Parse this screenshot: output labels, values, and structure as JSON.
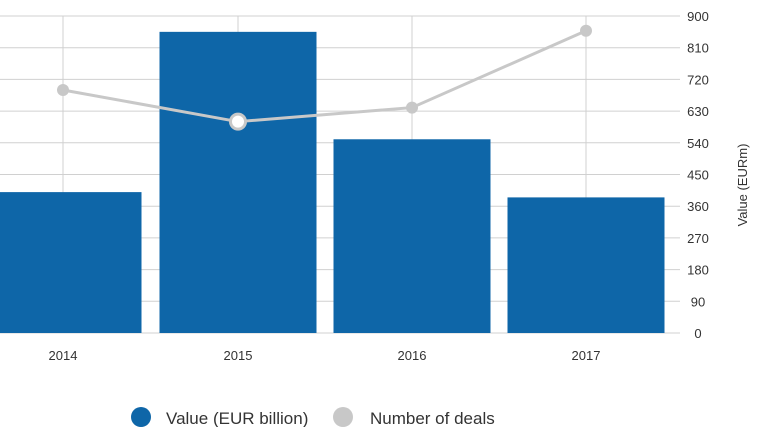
{
  "chart_data": {
    "type": "bar",
    "categories": [
      "2014",
      "2015",
      "2016",
      "2017"
    ],
    "series": [
      {
        "name": "Value (EUR billion)",
        "type": "bar",
        "axis": "right",
        "values": [
          400,
          855,
          550,
          385
        ],
        "color": "#0e66a8"
      },
      {
        "name": "Number of deals",
        "type": "line",
        "axis": "right",
        "values": [
          690,
          600,
          640,
          858
        ],
        "color": "#c8c8c8"
      }
    ],
    "ylabel": "Value (EURm)",
    "ylim": [
      0,
      900
    ],
    "yticks": [
      "0",
      "90",
      "180",
      "270",
      "360",
      "450",
      "540",
      "630",
      "720",
      "810",
      "900"
    ],
    "grid": true,
    "legend_position": "bottom",
    "colors": {
      "bar": "#0e66a8",
      "line": "#c8c8c8",
      "grid": "#d0d0d0"
    }
  }
}
